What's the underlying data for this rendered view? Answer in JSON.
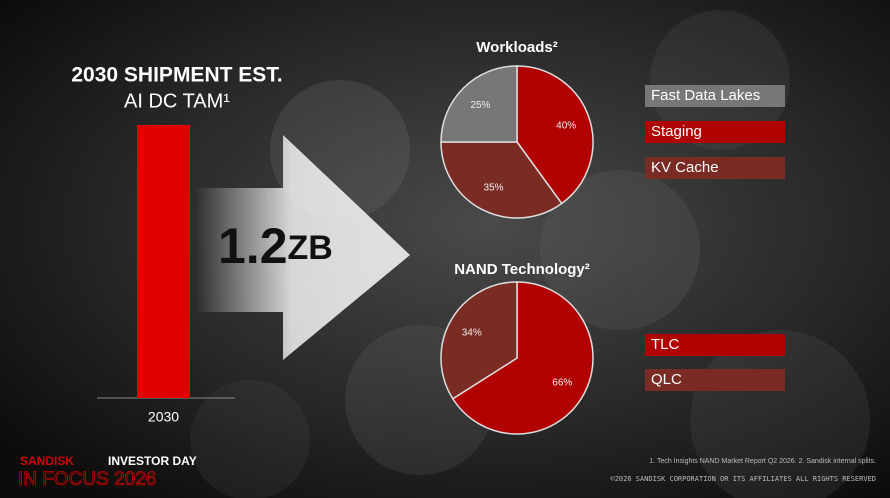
{
  "chart_data": [
    {
      "type": "bar",
      "title": "2030 SHIPMENT EST.",
      "subtitle": "AI DC TAM¹",
      "categories": [
        "2030"
      ],
      "values": [
        1.2
      ],
      "value_labels": [
        "1.2"
      ],
      "unit": "ZB",
      "color": "#e00000"
    },
    {
      "type": "pie",
      "title": "Workloads²",
      "categories": [
        "Staging",
        "KV Cache",
        "Fast Data Lakes"
      ],
      "values": [
        40,
        35,
        25
      ],
      "value_labels": [
        "40%",
        "35%",
        "25%"
      ],
      "colors": [
        "#b00000",
        "#7a2b24",
        "#777777"
      ]
    },
    {
      "type": "pie",
      "title": "NAND Technology²",
      "categories": [
        "TLC",
        "QLC"
      ],
      "values": [
        66,
        34
      ],
      "value_labels": [
        "66%",
        "34%"
      ],
      "colors": [
        "#b00000",
        "#7a2b24"
      ]
    }
  ],
  "footnote": "1. Tech Insights NAND Market Report Q2 2026.  2. Sandisk internal splits.",
  "copyright": "©2026 SANDISK CORPORATION OR ITS AFFILIATES ALL RIGHTS RESERVED",
  "branding": {
    "brand": "SANDISK",
    "event": "INVESTOR DAY",
    "tagline": "IN FOCUS 2026"
  }
}
